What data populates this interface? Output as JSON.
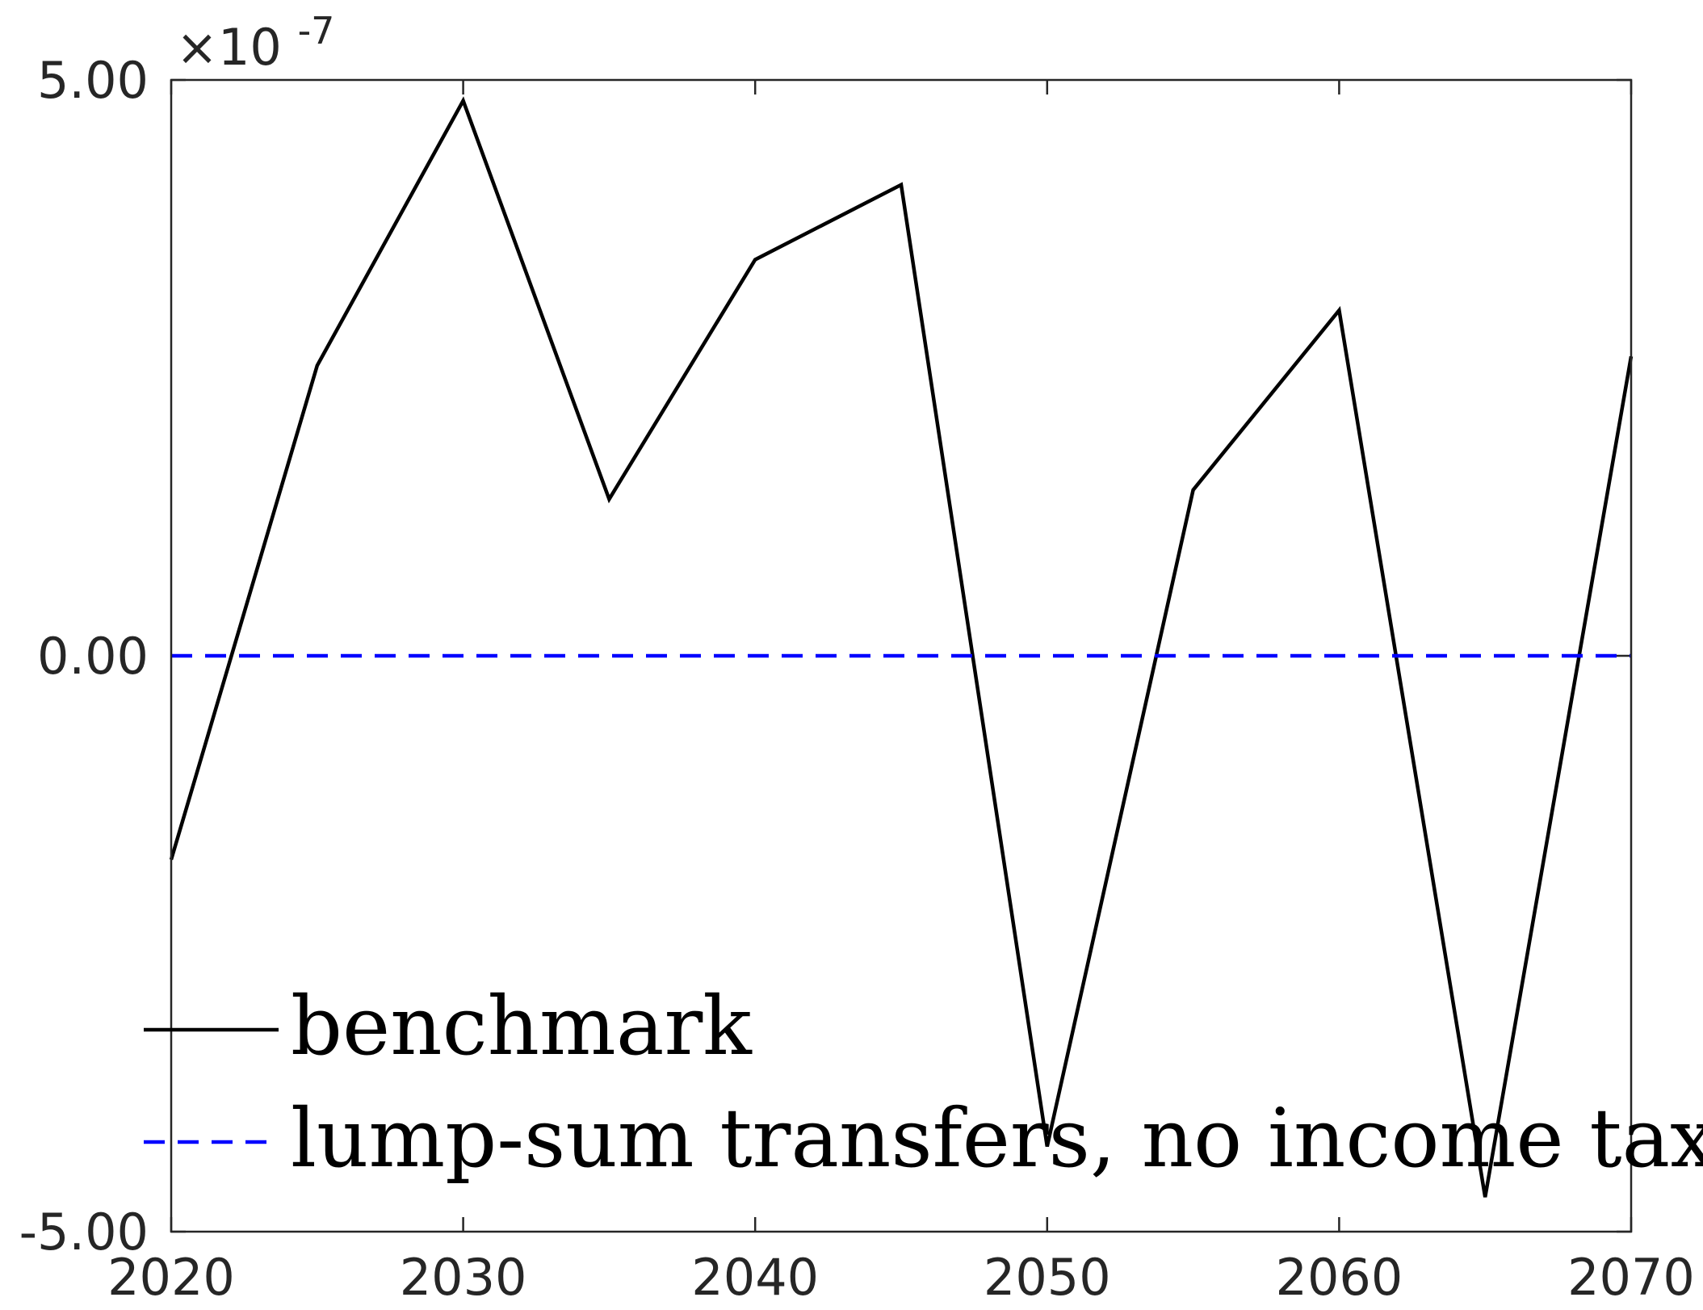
{
  "chart_data": {
    "type": "line",
    "x": [
      2020,
      2025,
      2030,
      2035,
      2040,
      2045,
      2050,
      2055,
      2060,
      2065,
      2070
    ],
    "series": [
      {
        "name": "benchmark",
        "values": [
          -1.77e-07,
          2.52e-07,
          4.82e-07,
          1.36e-07,
          3.44e-07,
          4.09e-07,
          -4.26e-07,
          1.44e-07,
          3e-07,
          -4.7e-07,
          2.6e-07
        ],
        "color": "#000000",
        "style": "solid"
      },
      {
        "name": "lump-sum transfers, no income tax",
        "values": [
          0,
          0,
          0,
          0,
          0,
          0,
          0,
          0,
          0,
          0,
          0
        ],
        "color": "#0000ff",
        "style": "dashed"
      }
    ],
    "xlim": [
      2020,
      2070
    ],
    "ylim": [
      -5e-07,
      5e-07
    ],
    "xticks": [
      "2020",
      "2030",
      "2040",
      "2050",
      "2060",
      "2070"
    ],
    "xtick_values": [
      2020,
      2030,
      2040,
      2050,
      2060,
      2070
    ],
    "yticks": [
      "-5.00",
      "0.00",
      "5.00"
    ],
    "ytick_values": [
      -5e-07,
      0,
      5e-07
    ],
    "exponent_label": {
      "prefix": "×10",
      "power": "-7"
    },
    "title": "",
    "xlabel": "",
    "ylabel": "",
    "grid": false,
    "legend_position": "bottom-left"
  }
}
